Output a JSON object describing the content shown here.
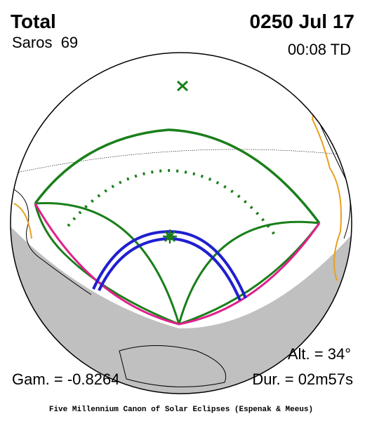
{
  "header": {
    "type": "Total",
    "date": "0250 Jul 17",
    "saros": "Saros  69",
    "time": "00:08 TD"
  },
  "stats": {
    "altitude": "Alt. = 34°",
    "gamma": "Gam. = -0.8264",
    "duration": "Dur. = 02m57s"
  },
  "footer": "Five Millennium Canon of Solar Eclipses (Espenak & Meeus)"
}
